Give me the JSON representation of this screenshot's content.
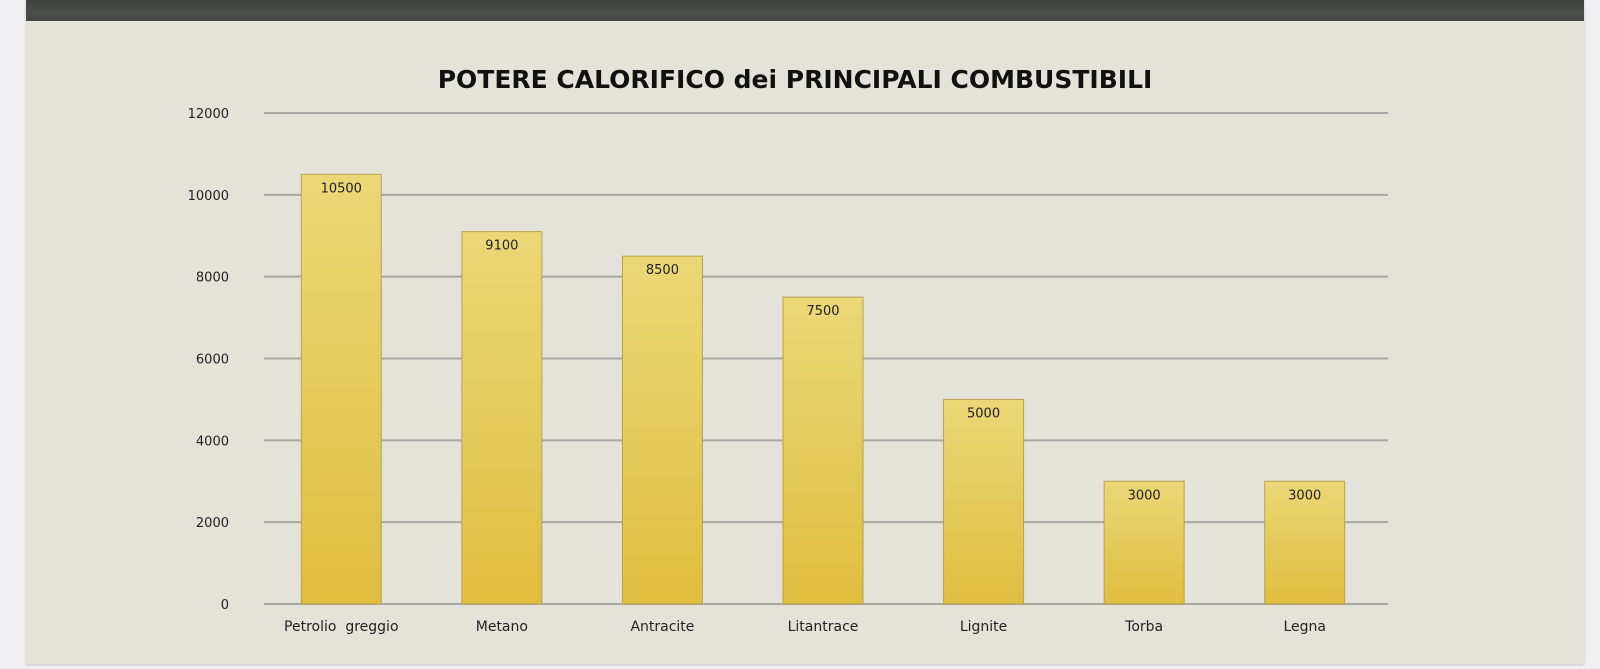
{
  "chart_data": {
    "type": "bar",
    "title": "POTERE CALORIFICO dei PRINCIPALI COMBUSTIBILI",
    "categories": [
      "Petrolio  greggio",
      "Metano",
      "Antracite",
      "Litantrace",
      "Lignite",
      "Torba",
      "Legna"
    ],
    "values": [
      10500,
      9100,
      8500,
      7500,
      5000,
      3000,
      3000
    ],
    "yticks": [
      "0",
      "2000",
      "4000",
      "6000",
      "8000",
      "10000",
      "12000"
    ],
    "ylim": [
      0,
      12000
    ],
    "grid": true,
    "legend": "none",
    "colors": {
      "bar_top": "#ead877",
      "bar_bottom": "#e0bd3f",
      "bar_stroke": "#b8a24e",
      "grid": "#a9a9a4"
    }
  }
}
